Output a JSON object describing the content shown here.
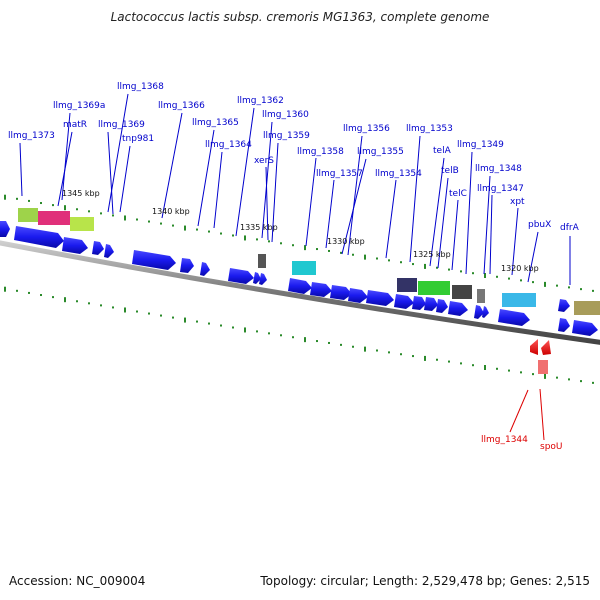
{
  "title": "Lactococcus lactis subsp. cremoris MG1363, complete genome",
  "footer": {
    "accession_label": "Accession:",
    "accession": "NC_009004",
    "topology_text": "Topology: circular; Length: 2,529,478 bp; Genes: 2,515"
  },
  "colors": {
    "gene_forward": "#1a1aee",
    "gene_reverse": "#ee0000",
    "backbone": "#777777",
    "tick": "#2a8a2a",
    "label_blue": "#0000cc",
    "label_red": "#dd0000"
  },
  "scale_labels": [
    "1345 kbp",
    "1340 kbp",
    "1335 kbp",
    "1330 kbp",
    "1325 kbp",
    "1320 kbp"
  ],
  "gene_labels": [
    {
      "name": "llmg_1373",
      "text": "llmg_1373"
    },
    {
      "name": "llmg_1369a",
      "text": "llmg_1369a"
    },
    {
      "name": "matr",
      "text": "matR"
    },
    {
      "name": "llmg_1368",
      "text": "llmg_1368"
    },
    {
      "name": "llmg_1369",
      "text": "llmg_1369"
    },
    {
      "name": "tnp981",
      "text": "tnp981"
    },
    {
      "name": "llmg_1366",
      "text": "llmg_1366"
    },
    {
      "name": "llmg_1365",
      "text": "llmg_1365"
    },
    {
      "name": "llmg_1364",
      "text": "llmg_1364"
    },
    {
      "name": "llmg_1362",
      "text": "llmg_1362"
    },
    {
      "name": "llmg_1360",
      "text": "llmg_1360"
    },
    {
      "name": "llmg_1359",
      "text": "llmg_1359"
    },
    {
      "name": "xers",
      "text": "xerS"
    },
    {
      "name": "llmg_1358",
      "text": "llmg_1358"
    },
    {
      "name": "llmg_1357",
      "text": "llmg_1357"
    },
    {
      "name": "llmg_1356",
      "text": "llmg_1356"
    },
    {
      "name": "llmg_1355",
      "text": "llmg_1355"
    },
    {
      "name": "llmg_1354",
      "text": "llmg_1354"
    },
    {
      "name": "llmg_1353",
      "text": "llmg_1353"
    },
    {
      "name": "tela",
      "text": "telA"
    },
    {
      "name": "telb",
      "text": "telB"
    },
    {
      "name": "telc",
      "text": "telC"
    },
    {
      "name": "llmg_1349",
      "text": "llmg_1349"
    },
    {
      "name": "llmg_1348",
      "text": "llmg_1348"
    },
    {
      "name": "llmg_1347",
      "text": "llmg_1347"
    },
    {
      "name": "xpt",
      "text": "xpt"
    },
    {
      "name": "pbux",
      "text": "pbuX"
    },
    {
      "name": "dfra",
      "text": "dfrA"
    },
    {
      "name": "llmg_1344",
      "text": "llmg_1344"
    },
    {
      "name": "spou",
      "text": "spoU"
    }
  ]
}
